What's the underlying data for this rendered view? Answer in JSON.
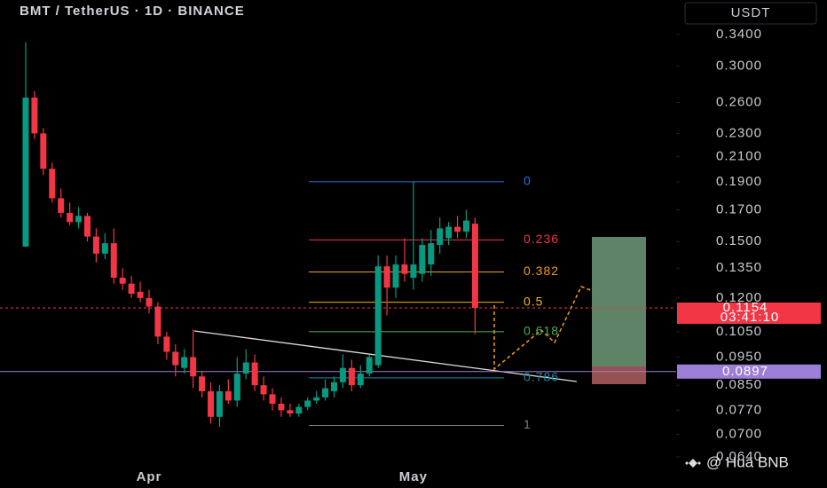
{
  "chart_data": {
    "type": "candlestick",
    "title": "BMT / TetherUS · 1D · BINANCE",
    "currency": "USDT",
    "watermark": "@ Hua BNB",
    "categories": [
      null,
      null,
      null,
      null,
      null,
      null,
      null,
      null,
      null,
      null,
      null,
      null,
      null,
      null,
      "Apr",
      null,
      null,
      null,
      null,
      null,
      null,
      null,
      null,
      null,
      null,
      null,
      null,
      null,
      null,
      null,
      null,
      null,
      null,
      null,
      null,
      null,
      null,
      null,
      null,
      null,
      null,
      null,
      null,
      null,
      "May",
      null,
      null,
      null,
      null,
      null,
      null,
      null
    ],
    "open": [
      0.147,
      0.265,
      0.23,
      0.2,
      0.178,
      0.168,
      0.162,
      0.166,
      0.153,
      0.143,
      0.149,
      0.13,
      0.127,
      0.123,
      0.12,
      0.116,
      0.103,
      0.097,
      0.091,
      0.095,
      0.088,
      0.083,
      0.075,
      0.083,
      0.08,
      0.089,
      0.093,
      0.085,
      0.082,
      0.079,
      0.077,
      0.076,
      0.078,
      0.08,
      0.081,
      0.083,
      0.086,
      0.091,
      0.085,
      0.089,
      0.092,
      0.136,
      0.125,
      0.137,
      0.13,
      0.132,
      0.137,
      0.148,
      0.152,
      0.159,
      0.156,
      0.161
    ],
    "high": [
      0.33,
      0.272,
      0.235,
      0.205,
      0.185,
      0.175,
      0.172,
      0.168,
      0.158,
      0.155,
      0.158,
      0.135,
      0.131,
      0.128,
      0.124,
      0.118,
      0.105,
      0.1,
      0.098,
      0.106,
      0.09,
      0.086,
      0.085,
      0.087,
      0.095,
      0.098,
      0.096,
      0.088,
      0.084,
      0.081,
      0.079,
      0.079,
      0.081,
      0.083,
      0.087,
      0.088,
      0.096,
      0.094,
      0.092,
      0.096,
      0.142,
      0.142,
      0.142,
      0.152,
      0.19,
      0.152,
      0.157,
      0.165,
      0.162,
      0.166,
      0.17,
      0.165
    ],
    "low": [
      0.147,
      0.225,
      0.195,
      0.175,
      0.165,
      0.16,
      0.158,
      0.15,
      0.138,
      0.14,
      0.127,
      0.124,
      0.12,
      0.118,
      0.113,
      0.1,
      0.094,
      0.088,
      0.089,
      0.084,
      0.081,
      0.073,
      0.072,
      0.079,
      0.078,
      0.087,
      0.083,
      0.08,
      0.077,
      0.075,
      0.075,
      0.075,
      0.077,
      0.079,
      0.08,
      0.081,
      0.084,
      0.083,
      0.084,
      0.088,
      0.091,
      0.112,
      0.12,
      0.128,
      0.124,
      0.128,
      0.131,
      0.143,
      0.148,
      0.152,
      0.152,
      0.104
    ],
    "close": [
      0.265,
      0.23,
      0.2,
      0.178,
      0.168,
      0.162,
      0.166,
      0.153,
      0.143,
      0.149,
      0.13,
      0.127,
      0.122,
      0.12,
      0.116,
      0.103,
      0.097,
      0.092,
      0.095,
      0.088,
      0.083,
      0.075,
      0.083,
      0.08,
      0.089,
      0.093,
      0.085,
      0.082,
      0.079,
      0.077,
      0.076,
      0.078,
      0.08,
      0.081,
      0.084,
      0.086,
      0.091,
      0.085,
      0.089,
      0.095,
      0.136,
      0.125,
      0.137,
      0.132,
      0.137,
      0.148,
      0.149,
      0.158,
      0.159,
      0.156,
      0.163,
      0.1154
    ],
    "up_color": "#089981",
    "down_color": "#f23645",
    "log_scale": true,
    "ylim": [
      0.0618,
      0.3634
    ],
    "yticks": [
      {
        "value": 0.34,
        "label": "0.3400"
      },
      {
        "value": 0.3,
        "label": "0.3000"
      },
      {
        "value": 0.26,
        "label": "0.2600"
      },
      {
        "value": 0.23,
        "label": "0.2300"
      },
      {
        "value": 0.21,
        "label": "0.2100"
      },
      {
        "value": 0.19,
        "label": "0.1900"
      },
      {
        "value": 0.17,
        "label": "0.1700"
      },
      {
        "value": 0.15,
        "label": "0.1500"
      },
      {
        "value": 0.135,
        "label": "0.1350"
      },
      {
        "value": 0.12,
        "label": "0.1200"
      },
      {
        "value": 0.105,
        "label": "0.1050"
      },
      {
        "value": 0.095,
        "label": "0.0950"
      },
      {
        "value": 0.085,
        "label": "0.0850"
      },
      {
        "value": 0.077,
        "label": "0.0770"
      },
      {
        "value": 0.07,
        "label": "0.0700"
      },
      {
        "value": 0.064,
        "label": "0.0640"
      }
    ],
    "fib_levels": [
      {
        "level": 0,
        "price": 0.19,
        "color": "#2f6fe6"
      },
      {
        "level": 0.236,
        "price": 0.151,
        "color": "#f23645"
      },
      {
        "level": 0.382,
        "price": 0.133,
        "color": "#f59b1b"
      },
      {
        "level": 0.5,
        "price": 0.118,
        "color": "#f5b700"
      },
      {
        "level": 0.618,
        "price": 0.105,
        "color": "#4caf50"
      },
      {
        "level": 0.786,
        "price": 0.0875,
        "color": "#1e88a8"
      },
      {
        "level": 1,
        "price": 0.0725,
        "color": "#787b86"
      }
    ],
    "price_tags": [
      {
        "value": 0.1154,
        "countdown": "03:41:10",
        "color": "#f23645",
        "dashed": true
      },
      {
        "value": 0.0897,
        "color": "#9c7ed6",
        "dashed": false
      }
    ]
  }
}
